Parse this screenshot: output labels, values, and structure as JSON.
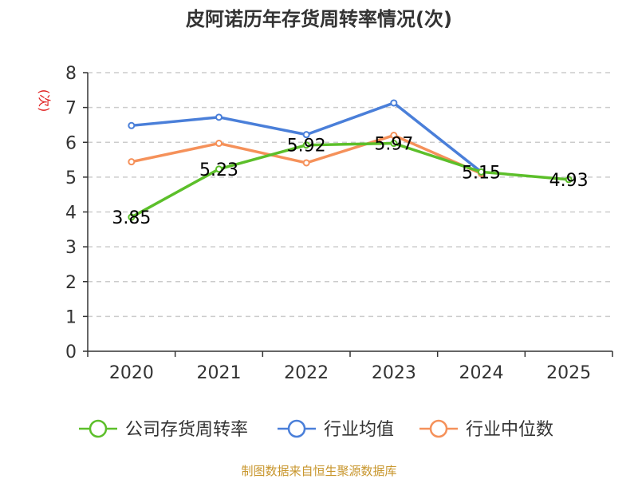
{
  "chart_data": {
    "type": "line",
    "title": "皮阿诺历年存货周转率情况(次)",
    "ylabel": "(次)",
    "xlabel": "",
    "categories": [
      "2020",
      "2021",
      "2022",
      "2023",
      "2024",
      "2025"
    ],
    "ylim": [
      0,
      8
    ],
    "yticks": [
      0,
      1,
      2,
      3,
      4,
      5,
      6,
      7,
      8
    ],
    "grid": true,
    "legend_position": "bottom",
    "series": [
      {
        "name": "公司存货周转率",
        "color": "#5cbf2a",
        "values": [
          3.85,
          5.23,
          5.92,
          5.97,
          5.15,
          4.93
        ],
        "labels": [
          "3.85",
          "5.23",
          "5.92",
          "5.97",
          "5.15",
          "4.93"
        ],
        "show_labels": true
      },
      {
        "name": "行业均值",
        "color": "#4a7fd9",
        "values": [
          6.48,
          6.72,
          6.22,
          7.13,
          5.15,
          null
        ],
        "show_labels": false
      },
      {
        "name": "行业中位数",
        "color": "#f5915a",
        "values": [
          5.44,
          5.97,
          5.41,
          6.2,
          5.1,
          null
        ],
        "show_labels": false
      }
    ],
    "source": "制图数据来自恒生聚源数据库"
  }
}
